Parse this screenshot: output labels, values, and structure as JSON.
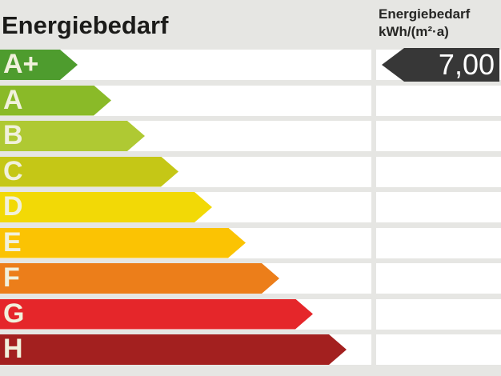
{
  "header": {
    "title": "Energiebedarf",
    "unit_label_line1": "Energiebedarf",
    "unit_label_line2": "kWh/(m²·a)"
  },
  "value_marker": {
    "value": "7,00",
    "category": "A+",
    "arrow_color": "#373737",
    "text_color": "#ffffff"
  },
  "scale": {
    "rows": [
      {
        "label": "A+",
        "color": "#4e9c2e",
        "arrow_width": 97
      },
      {
        "label": "A",
        "color": "#8aba28",
        "arrow_width": 139
      },
      {
        "label": "B",
        "color": "#afc933",
        "arrow_width": 181
      },
      {
        "label": "C",
        "color": "#c5c716",
        "arrow_width": 223
      },
      {
        "label": "D",
        "color": "#f2d906",
        "arrow_width": 265
      },
      {
        "label": "E",
        "color": "#fbc303",
        "arrow_width": 307
      },
      {
        "label": "F",
        "color": "#ec7e1a",
        "arrow_width": 349
      },
      {
        "label": "G",
        "color": "#e5262a",
        "arrow_width": 391
      },
      {
        "label": "H",
        "color": "#a3201f",
        "arrow_width": 433
      }
    ]
  },
  "layout_colors": {
    "background": "#e6e6e3",
    "row_background": "#ffffff",
    "letter_color": "#f1f1dc",
    "title_color": "#1b1b19"
  },
  "chart_data": {
    "type": "bar",
    "orientation": "horizontal",
    "title": "Energiebedarf",
    "unit": "kWh/(m²·a)",
    "categories": [
      "A+",
      "A",
      "B",
      "C",
      "D",
      "E",
      "F",
      "G",
      "H"
    ],
    "bar_relative_lengths": [
      97,
      139,
      181,
      223,
      265,
      307,
      349,
      391,
      433
    ],
    "bar_colors": [
      "#4e9c2e",
      "#8aba28",
      "#afc933",
      "#c5c716",
      "#f2d906",
      "#fbc303",
      "#ec7e1a",
      "#e5262a",
      "#a3201f"
    ],
    "indicator": {
      "value_text": "7,00",
      "value_numeric": 7.0,
      "unit": "kWh/(m²·a)",
      "category": "A+"
    },
    "legend_position": "none",
    "grid": false
  }
}
